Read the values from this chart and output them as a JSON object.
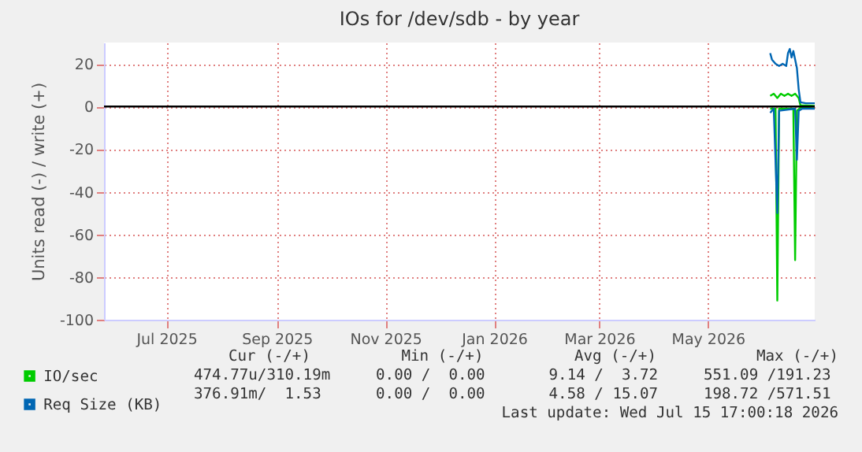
{
  "chart_data": {
    "type": "line",
    "title": "IOs for /dev/sdb - by year",
    "ylabel": "Units read (-) / write (+)",
    "xlim": [
      "2025-06-11",
      "2026-07-15"
    ],
    "ylim": [
      -100,
      30
    ],
    "xticks": [
      {
        "value": "2025-07-16",
        "label": "Jul 2025"
      },
      {
        "value": "2025-09-16",
        "label": "Sep 2025"
      },
      {
        "value": "2025-11-16",
        "label": "Nov 2025"
      },
      {
        "value": "2026-01-16",
        "label": "Jan 2026"
      },
      {
        "value": "2026-03-16",
        "label": "Mar 2026"
      },
      {
        "value": "2026-05-16",
        "label": "May 2026"
      }
    ],
    "yticks": [
      -100,
      -80,
      -60,
      -40,
      -20,
      0,
      20
    ],
    "grid": true,
    "legend": "bottom left",
    "ref_lines": [
      {
        "axis": "y",
        "value": 0,
        "color": "#000000"
      }
    ],
    "series": [
      {
        "name": "IO/sec",
        "color": "#00cc00",
        "x": [
          "2026-06-20",
          "2026-06-22",
          "2026-06-24",
          "2026-06-26",
          "2026-06-28",
          "2026-06-30",
          "2026-07-02",
          "2026-07-04",
          "2026-07-06",
          "2026-07-07",
          "2026-07-10",
          "2026-07-15"
        ],
        "values": [
          5,
          6,
          4,
          6,
          5,
          6,
          5,
          6,
          4,
          0.5,
          0.5,
          0.3
        ]
      },
      {
        "color": "#00cc00",
        "x": [
          "2026-06-20",
          "2026-06-23",
          "2026-06-24",
          "2026-06-25",
          "2026-07-03",
          "2026-07-04",
          "2026-07-05",
          "2026-07-07",
          "2026-07-15"
        ],
        "values": [
          -1,
          -1,
          -91,
          -1,
          -1,
          -72,
          -2,
          -0.5,
          0
        ]
      },
      {
        "name": "Req Size (KB)",
        "color": "#0066b3",
        "x": [
          "2026-06-20",
          "2026-06-21",
          "2026-06-23",
          "2026-06-25",
          "2026-06-27",
          "2026-06-29",
          "2026-06-30",
          "2026-07-01",
          "2026-07-02",
          "2026-07-03",
          "2026-07-05",
          "2026-07-06",
          "2026-07-07",
          "2026-07-10",
          "2026-07-15"
        ],
        "values": [
          25,
          22,
          20,
          19,
          20,
          19,
          25,
          27,
          23,
          26,
          18,
          8,
          2,
          1.5,
          1.5
        ]
      },
      {
        "color": "#0066b3",
        "x": [
          "2026-06-20",
          "2026-06-22",
          "2026-06-24",
          "2026-06-25",
          "2026-07-04",
          "2026-07-05",
          "2026-07-06",
          "2026-07-08",
          "2026-07-15"
        ],
        "values": [
          -3,
          -1,
          -50,
          -2,
          -1,
          -25,
          -2,
          -1,
          -1
        ]
      }
    ],
    "annotations": [
      "Cur (-/+)          Min (-/+)          Avg (-/+)           Max (-/+)",
      "474.77u/310.19m     0.00 /  0.00       9.14 /  3.72     551.09 /191.23",
      "376.91m/  1.53      0.00 /  0.00       4.58 / 15.07     198.72 /571.51",
      "Last update: Wed Jul 15 17:00:18 2026"
    ]
  }
}
